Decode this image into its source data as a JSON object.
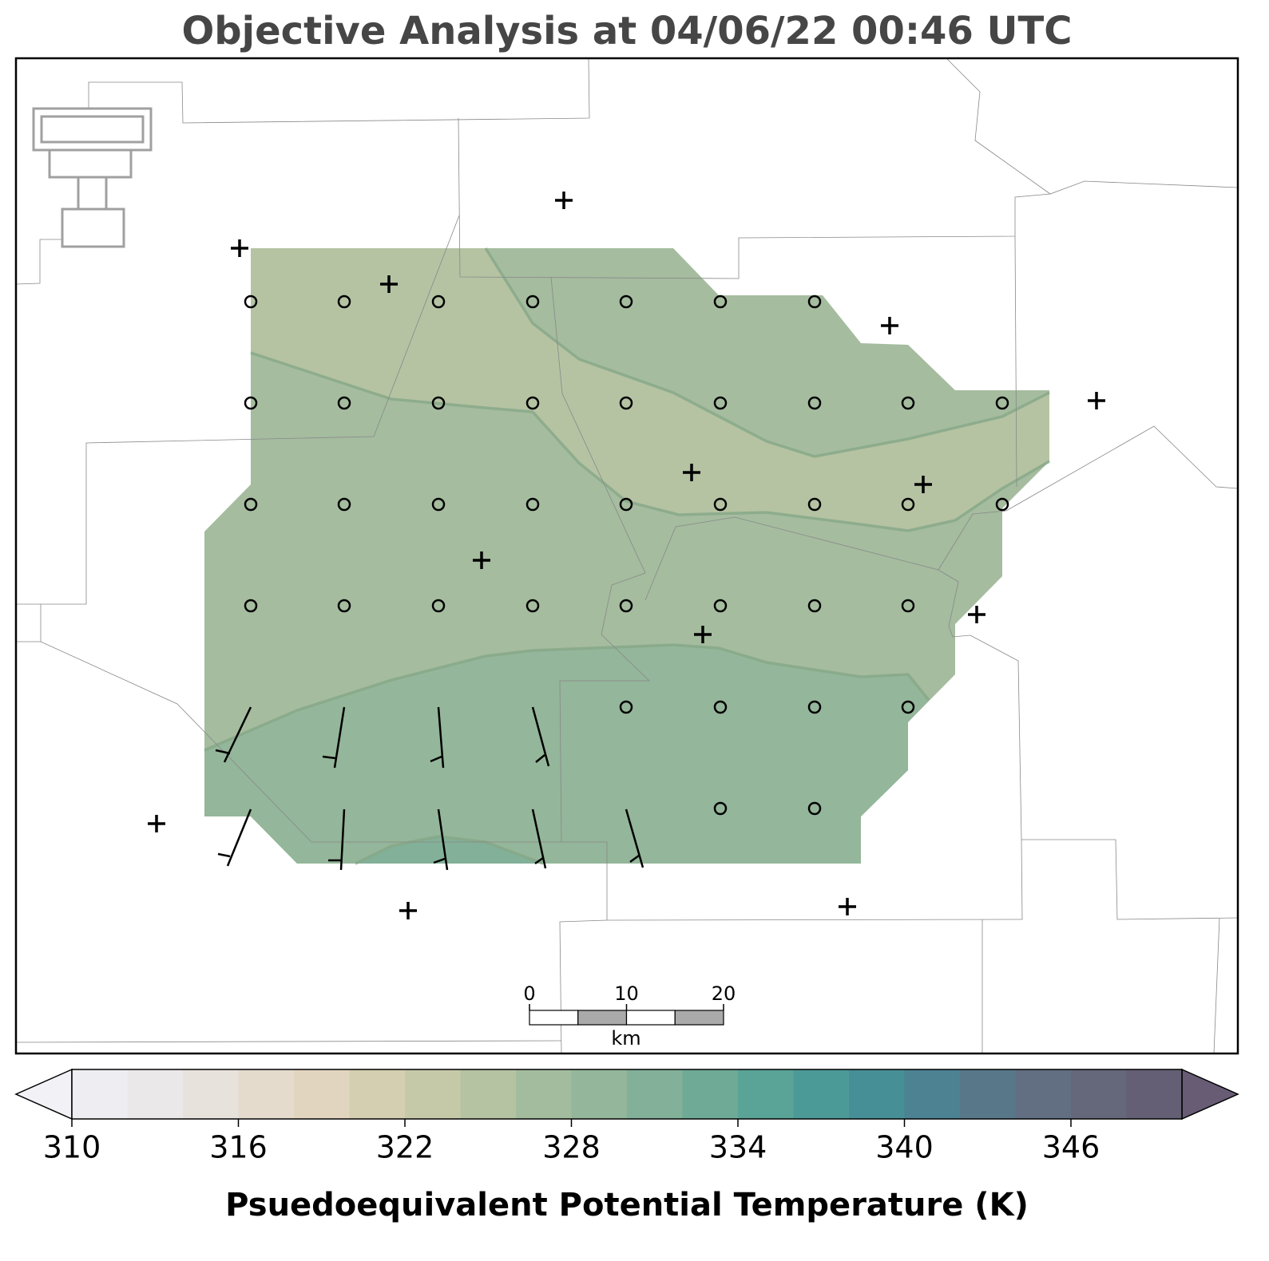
{
  "title": "Objective Analysis at 04/06/22 00:46 UTC",
  "scale_bar": {
    "ticks": [
      0,
      10,
      20
    ],
    "unit": "km"
  },
  "colorbar": {
    "label": "Psuedoequivalent Potential Temperature (K)",
    "extend": "both",
    "boundaries": [
      310,
      312,
      314,
      316,
      318,
      320,
      322,
      324,
      326,
      328,
      330,
      332,
      334,
      336,
      338,
      340,
      342,
      344,
      346,
      348,
      350
    ],
    "colors": [
      "#eeedf1",
      "#ebe8e9",
      "#e8e2dd",
      "#e4dbcd",
      "#e2d5c0",
      "#d4cfb0",
      "#c6c9a8",
      "#b5c3a3",
      "#a4bc9e",
      "#94b69a",
      "#82b098",
      "#6eaa96",
      "#5aa397",
      "#4c9a98",
      "#478f96",
      "#4c8292",
      "#58788a",
      "#626e81",
      "#65677a",
      "#655f75"
    ],
    "under_color": "#f1f1f6",
    "over_color": "#675c74",
    "ticks": [
      310,
      316,
      322,
      328,
      334,
      340,
      346
    ]
  }
}
